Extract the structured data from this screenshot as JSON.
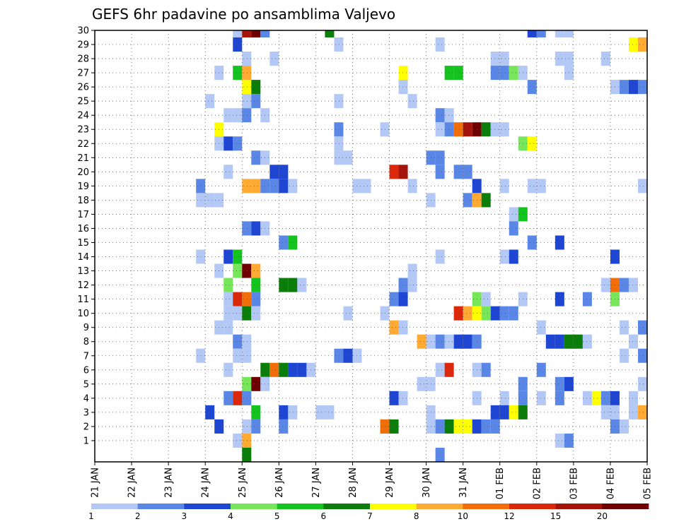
{
  "chart_data": {
    "type": "heatmap",
    "title": "GEFS 6hr padavine po ansamblima Valjevo",
    "xlabel": "",
    "ylabel": "",
    "x_tick_labels": [
      "21 JAN",
      "22 JAN",
      "23 JAN",
      "24 JAN",
      "25 JAN",
      "26 JAN",
      "27 JAN",
      "28 JAN",
      "29 JAN",
      "30 JAN",
      "31 JAN",
      "01 FEB",
      "02 FEB",
      "03 FEB",
      "04 FEB",
      "05 FEB"
    ],
    "y_tick_labels": [
      "1",
      "2",
      "3",
      "4",
      "5",
      "6",
      "7",
      "8",
      "9",
      "10",
      "11",
      "12",
      "13",
      "14",
      "15",
      "16",
      "17",
      "18",
      "19",
      "20",
      "21",
      "22",
      "23",
      "24",
      "25",
      "26",
      "27",
      "28",
      "29",
      "30"
    ],
    "y_range": [
      0,
      30
    ],
    "x_steps_per_day": 4,
    "x_steps": 60,
    "grid": true,
    "colorbar": {
      "labels": [
        "1",
        "2",
        "3",
        "4",
        "5",
        "6",
        "7",
        "8",
        "10",
        "12",
        "15",
        "20"
      ],
      "colors": [
        "#b4c8f5",
        "#5a87e6",
        "#1e46d2",
        "#78e65a",
        "#14c31e",
        "#0a7d0a",
        "#ffff00",
        "#ffaa32",
        "#f06e0a",
        "#dc280a",
        "#a5140a",
        "#6e0000"
      ]
    },
    "cells": [
      [
        15,
        30,
        1
      ],
      [
        16,
        30,
        11
      ],
      [
        17,
        30,
        12
      ],
      [
        18,
        30,
        2
      ],
      [
        25,
        30,
        6
      ],
      [
        47,
        30,
        3
      ],
      [
        48,
        30,
        2
      ],
      [
        50,
        30,
        1
      ],
      [
        51,
        30,
        1
      ],
      [
        15,
        29,
        3
      ],
      [
        26,
        29,
        1
      ],
      [
        37,
        29,
        1
      ],
      [
        58,
        29,
        7
      ],
      [
        59,
        29,
        8
      ],
      [
        16,
        28,
        1
      ],
      [
        19,
        28,
        1
      ],
      [
        43,
        28,
        1
      ],
      [
        44,
        28,
        1
      ],
      [
        50,
        28,
        1
      ],
      [
        51,
        28,
        1
      ],
      [
        55,
        28,
        1
      ],
      [
        13,
        27,
        1
      ],
      [
        15,
        27,
        5
      ],
      [
        16,
        27,
        8
      ],
      [
        33,
        27,
        7
      ],
      [
        38,
        27,
        5
      ],
      [
        39,
        27,
        5
      ],
      [
        43,
        27,
        2
      ],
      [
        44,
        27,
        2
      ],
      [
        45,
        27,
        4
      ],
      [
        46,
        27,
        1
      ],
      [
        51,
        27,
        1
      ],
      [
        16,
        26,
        7
      ],
      [
        17,
        26,
        6
      ],
      [
        33,
        26,
        1
      ],
      [
        47,
        26,
        2
      ],
      [
        56,
        26,
        1
      ],
      [
        57,
        26,
        2
      ],
      [
        58,
        26,
        3
      ],
      [
        59,
        26,
        2
      ],
      [
        12,
        25,
        1
      ],
      [
        16,
        25,
        1
      ],
      [
        17,
        25,
        2
      ],
      [
        26,
        25,
        1
      ],
      [
        34,
        25,
        1
      ],
      [
        14,
        24,
        1
      ],
      [
        15,
        24,
        1
      ],
      [
        16,
        24,
        2
      ],
      [
        18,
        24,
        1
      ],
      [
        37,
        24,
        2
      ],
      [
        38,
        24,
        1
      ],
      [
        13,
        23,
        7
      ],
      [
        26,
        23,
        2
      ],
      [
        31,
        23,
        1
      ],
      [
        37,
        23,
        1
      ],
      [
        38,
        23,
        2
      ],
      [
        39,
        23,
        9
      ],
      [
        40,
        23,
        11
      ],
      [
        41,
        23,
        12
      ],
      [
        42,
        23,
        6
      ],
      [
        43,
        23,
        1
      ],
      [
        44,
        23,
        1
      ],
      [
        13,
        22,
        1
      ],
      [
        14,
        22,
        3
      ],
      [
        15,
        22,
        2
      ],
      [
        26,
        22,
        1
      ],
      [
        46,
        22,
        4
      ],
      [
        47,
        22,
        7
      ],
      [
        17,
        21,
        2
      ],
      [
        18,
        21,
        1
      ],
      [
        26,
        21,
        1
      ],
      [
        27,
        21,
        1
      ],
      [
        36,
        21,
        2
      ],
      [
        37,
        21,
        2
      ],
      [
        14,
        20,
        1
      ],
      [
        19,
        20,
        3
      ],
      [
        20,
        20,
        3
      ],
      [
        32,
        20,
        10
      ],
      [
        33,
        20,
        11
      ],
      [
        37,
        20,
        2
      ],
      [
        39,
        20,
        2
      ],
      [
        40,
        20,
        2
      ],
      [
        11,
        19,
        2
      ],
      [
        16,
        19,
        8
      ],
      [
        17,
        19,
        8
      ],
      [
        18,
        19,
        2
      ],
      [
        19,
        19,
        2
      ],
      [
        20,
        19,
        3
      ],
      [
        21,
        19,
        1
      ],
      [
        28,
        19,
        1
      ],
      [
        29,
        19,
        1
      ],
      [
        34,
        19,
        1
      ],
      [
        41,
        19,
        3
      ],
      [
        44,
        19,
        1
      ],
      [
        47,
        19,
        1
      ],
      [
        48,
        19,
        1
      ],
      [
        59,
        19,
        1
      ],
      [
        11,
        18,
        1
      ],
      [
        12,
        18,
        1
      ],
      [
        13,
        18,
        1
      ],
      [
        36,
        18,
        1
      ],
      [
        40,
        18,
        2
      ],
      [
        41,
        18,
        8
      ],
      [
        42,
        18,
        6
      ],
      [
        45,
        17,
        1
      ],
      [
        46,
        17,
        5
      ],
      [
        16,
        16,
        2
      ],
      [
        17,
        16,
        3
      ],
      [
        18,
        16,
        1
      ],
      [
        45,
        16,
        2
      ],
      [
        20,
        15,
        2
      ],
      [
        21,
        15,
        5
      ],
      [
        47,
        15,
        2
      ],
      [
        50,
        15,
        3
      ],
      [
        11,
        14,
        1
      ],
      [
        14,
        14,
        3
      ],
      [
        15,
        14,
        5
      ],
      [
        37,
        14,
        1
      ],
      [
        44,
        14,
        1
      ],
      [
        45,
        14,
        3
      ],
      [
        56,
        14,
        3
      ],
      [
        13,
        13,
        1
      ],
      [
        15,
        13,
        4
      ],
      [
        16,
        13,
        12
      ],
      [
        17,
        13,
        8
      ],
      [
        34,
        13,
        1
      ],
      [
        14,
        12,
        4
      ],
      [
        17,
        12,
        5
      ],
      [
        20,
        12,
        6
      ],
      [
        21,
        12,
        6
      ],
      [
        22,
        12,
        1
      ],
      [
        33,
        12,
        2
      ],
      [
        34,
        12,
        1
      ],
      [
        55,
        12,
        1
      ],
      [
        56,
        12,
        9
      ],
      [
        57,
        12,
        2
      ],
      [
        58,
        12,
        1
      ],
      [
        14,
        11,
        1
      ],
      [
        15,
        11,
        10
      ],
      [
        16,
        11,
        9
      ],
      [
        17,
        11,
        2
      ],
      [
        32,
        11,
        2
      ],
      [
        33,
        11,
        3
      ],
      [
        41,
        11,
        4
      ],
      [
        42,
        11,
        1
      ],
      [
        46,
        11,
        1
      ],
      [
        50,
        11,
        3
      ],
      [
        53,
        11,
        2
      ],
      [
        56,
        11,
        4
      ],
      [
        14,
        10,
        1
      ],
      [
        15,
        10,
        1
      ],
      [
        16,
        10,
        6
      ],
      [
        17,
        10,
        1
      ],
      [
        27,
        10,
        1
      ],
      [
        31,
        10,
        1
      ],
      [
        39,
        10,
        10
      ],
      [
        40,
        10,
        8
      ],
      [
        41,
        10,
        7
      ],
      [
        42,
        10,
        4
      ],
      [
        43,
        10,
        3
      ],
      [
        44,
        10,
        2
      ],
      [
        45,
        10,
        2
      ],
      [
        13,
        9,
        1
      ],
      [
        14,
        9,
        1
      ],
      [
        32,
        9,
        8
      ],
      [
        33,
        9,
        1
      ],
      [
        48,
        9,
        1
      ],
      [
        57,
        9,
        1
      ],
      [
        59,
        9,
        2
      ],
      [
        15,
        8,
        2
      ],
      [
        16,
        8,
        1
      ],
      [
        35,
        8,
        8
      ],
      [
        36,
        8,
        1
      ],
      [
        37,
        8,
        2
      ],
      [
        38,
        8,
        1
      ],
      [
        39,
        8,
        3
      ],
      [
        40,
        8,
        3
      ],
      [
        41,
        8,
        2
      ],
      [
        49,
        8,
        3
      ],
      [
        50,
        8,
        3
      ],
      [
        51,
        8,
        6
      ],
      [
        52,
        8,
        6
      ],
      [
        53,
        8,
        1
      ],
      [
        58,
        8,
        1
      ],
      [
        11,
        7,
        1
      ],
      [
        15,
        7,
        1
      ],
      [
        16,
        7,
        1
      ],
      [
        26,
        7,
        2
      ],
      [
        27,
        7,
        3
      ],
      [
        28,
        7,
        1
      ],
      [
        57,
        7,
        1
      ],
      [
        59,
        7,
        2
      ],
      [
        14,
        6,
        1
      ],
      [
        18,
        6,
        6
      ],
      [
        19,
        6,
        9
      ],
      [
        20,
        6,
        6
      ],
      [
        21,
        6,
        3
      ],
      [
        22,
        6,
        3
      ],
      [
        23,
        6,
        1
      ],
      [
        37,
        6,
        1
      ],
      [
        38,
        6,
        10
      ],
      [
        41,
        6,
        1
      ],
      [
        42,
        6,
        2
      ],
      [
        48,
        6,
        2
      ],
      [
        16,
        5,
        4
      ],
      [
        17,
        5,
        12
      ],
      [
        18,
        5,
        1
      ],
      [
        35,
        5,
        1
      ],
      [
        36,
        5,
        1
      ],
      [
        46,
        5,
        2
      ],
      [
        50,
        5,
        2
      ],
      [
        51,
        5,
        3
      ],
      [
        59,
        5,
        1
      ],
      [
        14,
        4,
        2
      ],
      [
        15,
        4,
        10
      ],
      [
        16,
        4,
        2
      ],
      [
        32,
        4,
        3
      ],
      [
        33,
        4,
        1
      ],
      [
        41,
        4,
        1
      ],
      [
        44,
        4,
        1
      ],
      [
        46,
        4,
        2
      ],
      [
        48,
        4,
        1
      ],
      [
        50,
        4,
        2
      ],
      [
        53,
        4,
        1
      ],
      [
        54,
        4,
        7
      ],
      [
        55,
        4,
        2
      ],
      [
        56,
        4,
        3
      ],
      [
        58,
        4,
        1
      ],
      [
        12,
        3,
        3
      ],
      [
        17,
        3,
        5
      ],
      [
        20,
        3,
        3
      ],
      [
        21,
        3,
        1
      ],
      [
        24,
        3,
        1
      ],
      [
        25,
        3,
        1
      ],
      [
        36,
        3,
        1
      ],
      [
        43,
        3,
        3
      ],
      [
        44,
        3,
        3
      ],
      [
        45,
        3,
        7
      ],
      [
        46,
        3,
        6
      ],
      [
        55,
        3,
        1
      ],
      [
        56,
        3,
        1
      ],
      [
        58,
        3,
        1
      ],
      [
        59,
        3,
        4
      ],
      [
        59.99,
        3,
        8
      ],
      [
        13,
        2,
        3
      ],
      [
        16,
        2,
        1
      ],
      [
        17,
        2,
        2
      ],
      [
        20,
        2,
        2
      ],
      [
        31,
        2,
        9
      ],
      [
        32,
        2,
        6
      ],
      [
        36,
        2,
        1
      ],
      [
        37,
        2,
        2
      ],
      [
        38,
        2,
        6
      ],
      [
        39,
        2,
        7
      ],
      [
        40,
        2,
        7
      ],
      [
        41,
        2,
        3
      ],
      [
        42,
        2,
        2
      ],
      [
        43,
        2,
        2
      ],
      [
        56,
        2,
        2
      ],
      [
        57,
        2,
        1
      ],
      [
        15,
        1,
        1
      ],
      [
        16,
        1,
        8
      ],
      [
        50,
        1,
        1
      ],
      [
        51,
        1,
        2
      ],
      [
        16,
        0,
        6
      ],
      [
        37,
        0,
        2
      ]
    ]
  }
}
